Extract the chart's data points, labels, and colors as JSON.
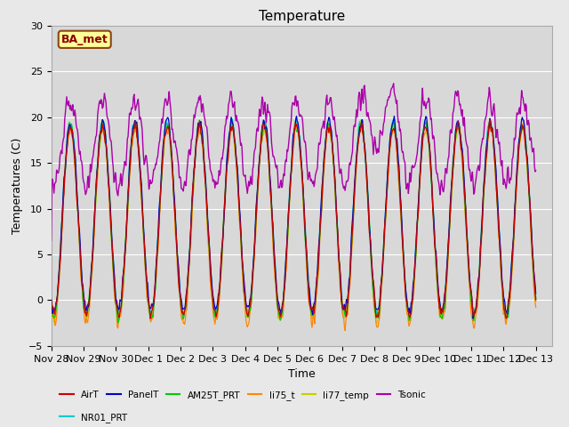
{
  "title": "Temperature",
  "xlabel": "Time",
  "ylabel": "Temperatures (C)",
  "ylim": [
    -5,
    30
  ],
  "annotation": "BA_met",
  "xtick_labels": [
    "Nov 28",
    "Nov 29",
    "Nov 30",
    "Dec 1",
    "Dec 2",
    "Dec 3",
    "Dec 4",
    "Dec 5",
    "Dec 6",
    "Dec 7",
    "Dec 8",
    "Dec 9",
    "Dec 10",
    "Dec 11",
    "Dec 12",
    "Dec 13"
  ],
  "series_colors": {
    "AirT": "#cc0000",
    "PanelT": "#0000cc",
    "AM25T_PRT": "#00cc00",
    "li75_t": "#ff8800",
    "li77_temp": "#cccc00",
    "Tsonic": "#aa00aa",
    "NR01_PRT": "#00cccc"
  },
  "bg_color": "#e8e8e8",
  "plot_bg_color": "#d8d8d8"
}
